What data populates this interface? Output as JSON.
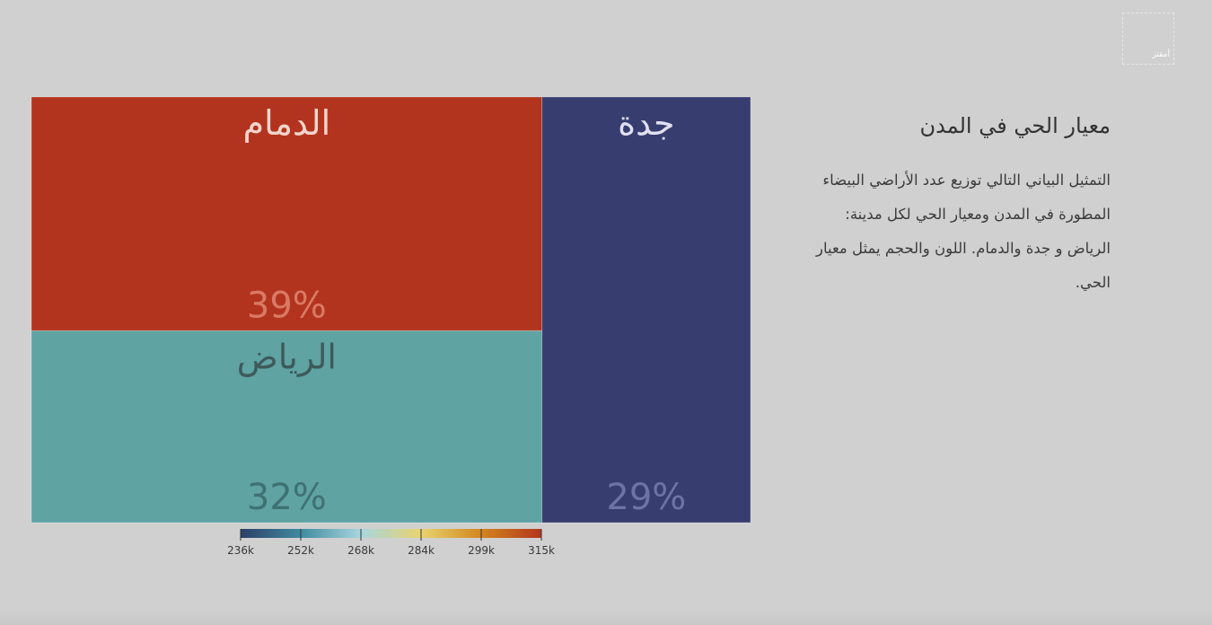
{
  "logo": {
    "text": "أمقتر"
  },
  "side_panel": {
    "title": "معيار الحي في المدن",
    "description": "التمثيل البياني التالي توزيع عدد الأراضي البيضاء المطورة في المدن ومعيار الحي لكل مدينة: الرياض و جدة والدمام. اللون والحجم يمثل معيار الحي."
  },
  "chart_data": {
    "type": "treemap",
    "title": "",
    "items": [
      {
        "name": "الدمام",
        "percent": 39,
        "label": "39%",
        "value": 315000,
        "color": "#b3341e"
      },
      {
        "name": "الرياض",
        "percent": 32,
        "label": "32%",
        "value": 266000,
        "color": "#5fa3a3"
      },
      {
        "name": "جدة",
        "percent": 29,
        "label": "29%",
        "value": 236000,
        "color": "#383d70"
      }
    ],
    "color_scale": {
      "min": 236000,
      "max": 315000,
      "ticks": [
        "236k",
        "252k",
        "268k",
        "284k",
        "299k",
        "315k"
      ],
      "colors": [
        "#2c3f68",
        "#3f8ba0",
        "#a8d6de",
        "#e8d46e",
        "#d3861e",
        "#b3341e"
      ]
    }
  }
}
